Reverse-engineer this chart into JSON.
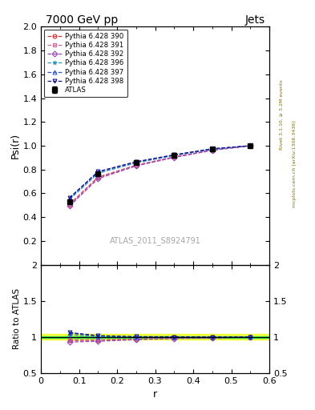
{
  "title": "7000 GeV pp",
  "title_right": "Jets",
  "watermark": "ATLAS_2011_S8924791",
  "ylabel_main": "Psi(r)",
  "ylabel_ratio": "Ratio to ATLAS",
  "xlabel": "r",
  "right_label": "mcplots.cern.ch [arXiv:1306.3436]",
  "right_label2": "Rivet 3.1.10, ≥ 3.2M events",
  "r_values": [
    0.075,
    0.15,
    0.25,
    0.35,
    0.45,
    0.55
  ],
  "atlas_psi": [
    0.53,
    0.768,
    0.862,
    0.921,
    0.975,
    1.0
  ],
  "atlas_err": [
    0.012,
    0.012,
    0.009,
    0.007,
    0.005,
    0.003
  ],
  "pythia_390_psi": [
    0.505,
    0.733,
    0.835,
    0.905,
    0.963,
    1.0
  ],
  "pythia_391_psi": [
    0.51,
    0.738,
    0.838,
    0.907,
    0.965,
    1.0
  ],
  "pythia_392_psi": [
    0.493,
    0.723,
    0.83,
    0.902,
    0.961,
    1.0
  ],
  "pythia_396_psi": [
    0.548,
    0.768,
    0.856,
    0.918,
    0.97,
    1.0
  ],
  "pythia_397_psi": [
    0.558,
    0.778,
    0.862,
    0.922,
    0.973,
    1.0
  ],
  "pythia_398_psi": [
    0.563,
    0.783,
    0.866,
    0.924,
    0.975,
    1.0
  ],
  "color_390": "#cc3333",
  "color_391": "#cc6699",
  "color_392": "#9944bb",
  "color_396": "#3399bb",
  "color_397": "#3355cc",
  "color_398": "#111188",
  "marker_390": "o",
  "marker_391": "s",
  "marker_392": "D",
  "marker_396": "*",
  "marker_397": "^",
  "marker_398": "v",
  "ylim_main": [
    0.0,
    2.0
  ],
  "ylim_ratio": [
    0.5,
    2.0
  ],
  "band_yellow_low": 0.96,
  "band_yellow_high": 1.04,
  "band_green_low": 0.99,
  "band_green_high": 1.01,
  "series_labels": [
    "ATLAS",
    "Pythia 6.428 390",
    "Pythia 6.428 391",
    "Pythia 6.428 392",
    "Pythia 6.428 396",
    "Pythia 6.428 397",
    "Pythia 6.428 398"
  ]
}
